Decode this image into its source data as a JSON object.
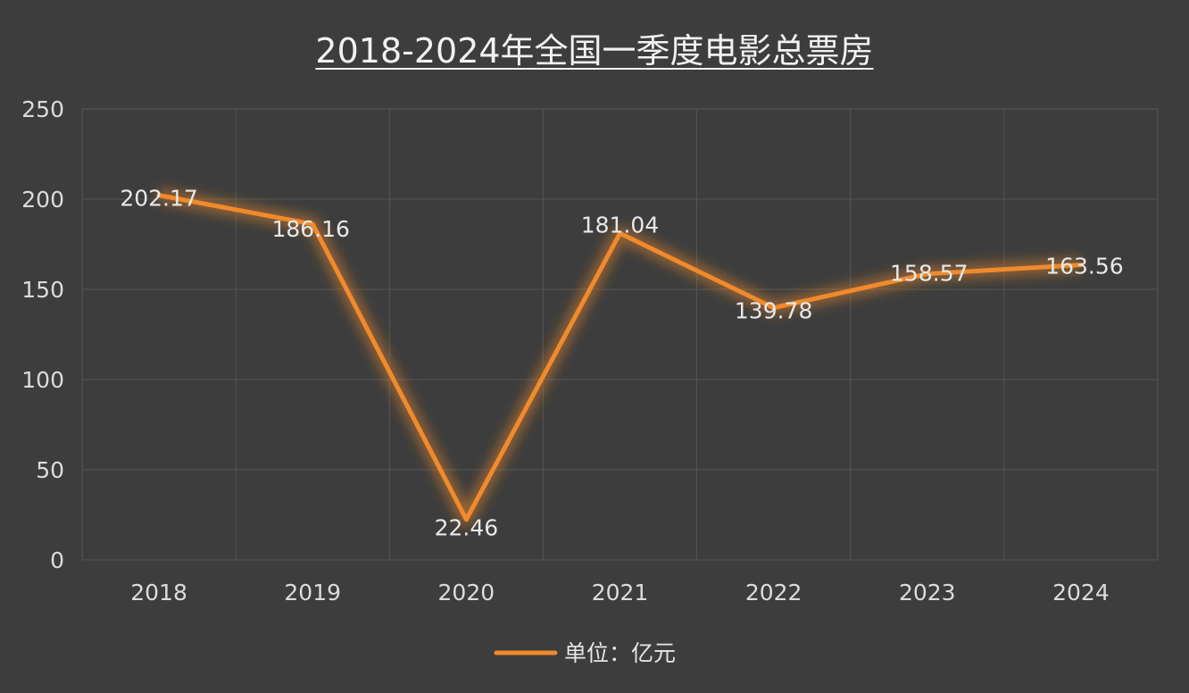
{
  "chart_data": {
    "type": "line",
    "title": "2018-2024年全国一季度电影总票房",
    "categories": [
      "2018",
      "2019",
      "2020",
      "2021",
      "2022",
      "2023",
      "2024"
    ],
    "series": [
      {
        "name": "单位：亿元",
        "values": [
          202.17,
          186.16,
          22.46,
          181.04,
          139.78,
          158.57,
          163.56
        ],
        "labels": [
          "202.17",
          "186.16",
          "22.46",
          "181.04",
          "139.78",
          "158.57",
          "163.56"
        ]
      }
    ],
    "ylim": [
      0,
      250
    ],
    "yticks": [
      0,
      50,
      100,
      150,
      200,
      250
    ],
    "grid": true,
    "legend_position": "bottom",
    "colors": {
      "line": "#f08a2c",
      "background": "#3d3d3d",
      "grid": "#555555"
    }
  }
}
